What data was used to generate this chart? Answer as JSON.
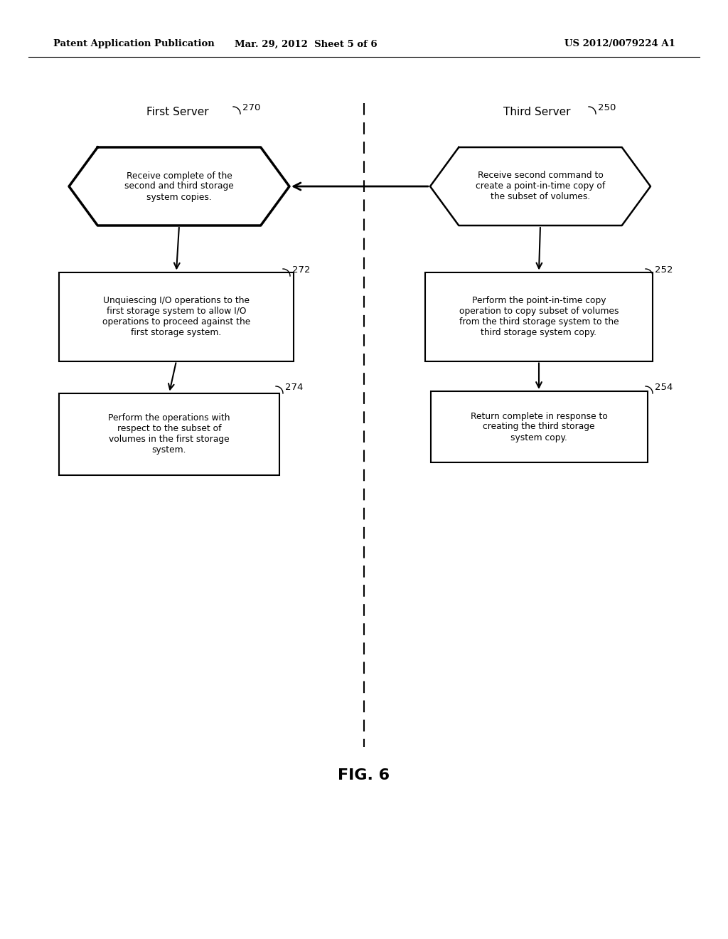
{
  "header_left": "Patent Application Publication",
  "header_center": "Mar. 29, 2012  Sheet 5 of 6",
  "header_right": "US 2012/0079224 A1",
  "fig_label": "FIG. 6",
  "left_col_title": "First Server",
  "left_col_num": "270",
  "right_col_title": "Third Server",
  "right_col_num": "250",
  "left_hex_text": "Receive complete of the\nsecond and third storage\nsystem copies.",
  "right_hex_text": "Receive second command to\ncreate a point-in-time copy of\nthe subset of volumes.",
  "left_box1_text": "Unquiescing I/O operations to the\nfirst storage system to allow I/O\noperations to proceed against the\nfirst storage system.",
  "left_box1_num": "272",
  "right_box1_text": "Perform the point-in-time copy\noperation to copy subset of volumes\nfrom the third storage system to the\nthird storage system copy.",
  "right_box1_num": "252",
  "left_box2_text": "Perform the operations with\nrespect to the subset of\nvolumes in the first storage\nsystem.",
  "left_box2_num": "274",
  "right_box2_text": "Return complete in response to\ncreating the third storage\nsystem copy.",
  "right_box2_num": "254",
  "bg_color": "#ffffff",
  "text_color": "#000000",
  "line_color": "#000000"
}
